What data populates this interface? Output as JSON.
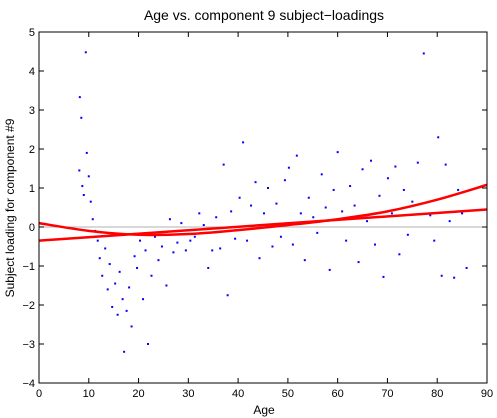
{
  "chart_data": {
    "type": "scatter",
    "title": "Age vs. component 9 subject−loadings",
    "xlabel": "Age",
    "ylabel": "Subject loading for component #9",
    "xlim": [
      0,
      90
    ],
    "ylim": [
      -4,
      5
    ],
    "xticks": [
      "0",
      "10",
      "20",
      "30",
      "40",
      "50",
      "60",
      "70",
      "80",
      "90"
    ],
    "yticks": [
      "−4",
      "−3",
      "−2",
      "−1",
      "0",
      "1",
      "2",
      "3",
      "4",
      "5"
    ],
    "grid": false,
    "legend": "none",
    "colors": {
      "points": "#0000ff",
      "fit": "#ff0000",
      "zero_line": "#b0b0b0",
      "axes": "#000000"
    },
    "reference_line": {
      "y": 0
    },
    "fits": [
      {
        "kind": "linear",
        "x": [
          0,
          90
        ],
        "y": [
          -0.35,
          0.45
        ]
      },
      {
        "kind": "quadratic",
        "x": [
          0,
          10,
          20,
          30,
          40,
          50,
          60,
          70,
          80,
          90
        ],
        "y": [
          0.1,
          -0.1,
          -0.2,
          -0.18,
          -0.08,
          0.05,
          0.2,
          0.4,
          0.7,
          1.08
        ]
      }
    ],
    "points": [
      [
        8.2,
        3.33
      ],
      [
        8.5,
        2.8
      ],
      [
        9.4,
        4.48
      ],
      [
        8.1,
        1.45
      ],
      [
        8.7,
        1.05
      ],
      [
        9.0,
        0.82
      ],
      [
        9.6,
        1.9
      ],
      [
        10.0,
        1.3
      ],
      [
        10.4,
        0.65
      ],
      [
        10.8,
        0.2
      ],
      [
        11.3,
        -0.1
      ],
      [
        11.8,
        -0.35
      ],
      [
        12.2,
        -0.8
      ],
      [
        12.7,
        -1.25
      ],
      [
        13.3,
        -0.55
      ],
      [
        13.8,
        -1.6
      ],
      [
        14.2,
        -0.95
      ],
      [
        14.7,
        -2.05
      ],
      [
        15.3,
        -1.45
      ],
      [
        15.8,
        -2.25
      ],
      [
        16.2,
        -1.15
      ],
      [
        16.8,
        -1.85
      ],
      [
        17.1,
        -3.2
      ],
      [
        17.6,
        -2.15
      ],
      [
        18.1,
        -1.55
      ],
      [
        18.6,
        -2.55
      ],
      [
        19.2,
        -0.75
      ],
      [
        19.7,
        -1.05
      ],
      [
        20.3,
        -0.35
      ],
      [
        20.9,
        -1.85
      ],
      [
        21.4,
        -0.6
      ],
      [
        21.9,
        -3.0
      ],
      [
        22.6,
        -1.25
      ],
      [
        23.3,
        -0.25
      ],
      [
        24.0,
        -0.85
      ],
      [
        24.7,
        -0.5
      ],
      [
        25.6,
        -1.5
      ],
      [
        26.3,
        0.2
      ],
      [
        27.0,
        -0.65
      ],
      [
        27.8,
        -0.4
      ],
      [
        28.6,
        0.1
      ],
      [
        29.5,
        -0.6
      ],
      [
        30.4,
        -0.35
      ],
      [
        31.3,
        -0.25
      ],
      [
        32.2,
        0.35
      ],
      [
        33.1,
        0.05
      ],
      [
        34.0,
        -1.05
      ],
      [
        34.8,
        -0.6
      ],
      [
        35.6,
        0.25
      ],
      [
        36.4,
        -0.55
      ],
      [
        37.1,
        1.6
      ],
      [
        37.9,
        -1.75
      ],
      [
        38.6,
        0.4
      ],
      [
        39.4,
        -0.3
      ],
      [
        40.3,
        0.75
      ],
      [
        41.0,
        2.17
      ],
      [
        41.8,
        -0.35
      ],
      [
        42.6,
        0.55
      ],
      [
        43.5,
        1.15
      ],
      [
        44.3,
        -0.8
      ],
      [
        45.2,
        0.35
      ],
      [
        46.0,
        1.0
      ],
      [
        46.9,
        -0.5
      ],
      [
        47.7,
        0.6
      ],
      [
        48.6,
        -0.25
      ],
      [
        49.4,
        1.2
      ],
      [
        50.2,
        1.52
      ],
      [
        51.0,
        -0.45
      ],
      [
        51.8,
        1.83
      ],
      [
        52.6,
        0.35
      ],
      [
        53.4,
        -0.85
      ],
      [
        54.2,
        0.75
      ],
      [
        55.1,
        0.25
      ],
      [
        55.9,
        -0.15
      ],
      [
        56.8,
        1.35
      ],
      [
        57.6,
        0.5
      ],
      [
        58.4,
        -1.1
      ],
      [
        59.2,
        0.95
      ],
      [
        60.0,
        1.92
      ],
      [
        60.9,
        0.4
      ],
      [
        61.7,
        -0.35
      ],
      [
        62.5,
        1.05
      ],
      [
        63.4,
        0.55
      ],
      [
        64.2,
        -0.9
      ],
      [
        65.0,
        1.48
      ],
      [
        65.9,
        0.15
      ],
      [
        66.7,
        1.7
      ],
      [
        67.5,
        -0.45
      ],
      [
        68.4,
        0.8
      ],
      [
        69.2,
        -1.28
      ],
      [
        70.1,
        1.25
      ],
      [
        70.9,
        0.35
      ],
      [
        71.6,
        1.55
      ],
      [
        72.4,
        -0.7
      ],
      [
        73.3,
        0.95
      ],
      [
        74.1,
        -0.2
      ],
      [
        75.0,
        0.65
      ],
      [
        76.1,
        1.65
      ],
      [
        77.3,
        4.45
      ],
      [
        78.6,
        0.3
      ],
      [
        79.4,
        -0.35
      ],
      [
        80.2,
        2.3
      ],
      [
        80.9,
        -1.25
      ],
      [
        81.7,
        1.6
      ],
      [
        82.5,
        0.15
      ],
      [
        83.4,
        -1.3
      ],
      [
        84.2,
        0.95
      ],
      [
        85.0,
        0.35
      ],
      [
        85.9,
        -1.05
      ]
    ]
  }
}
